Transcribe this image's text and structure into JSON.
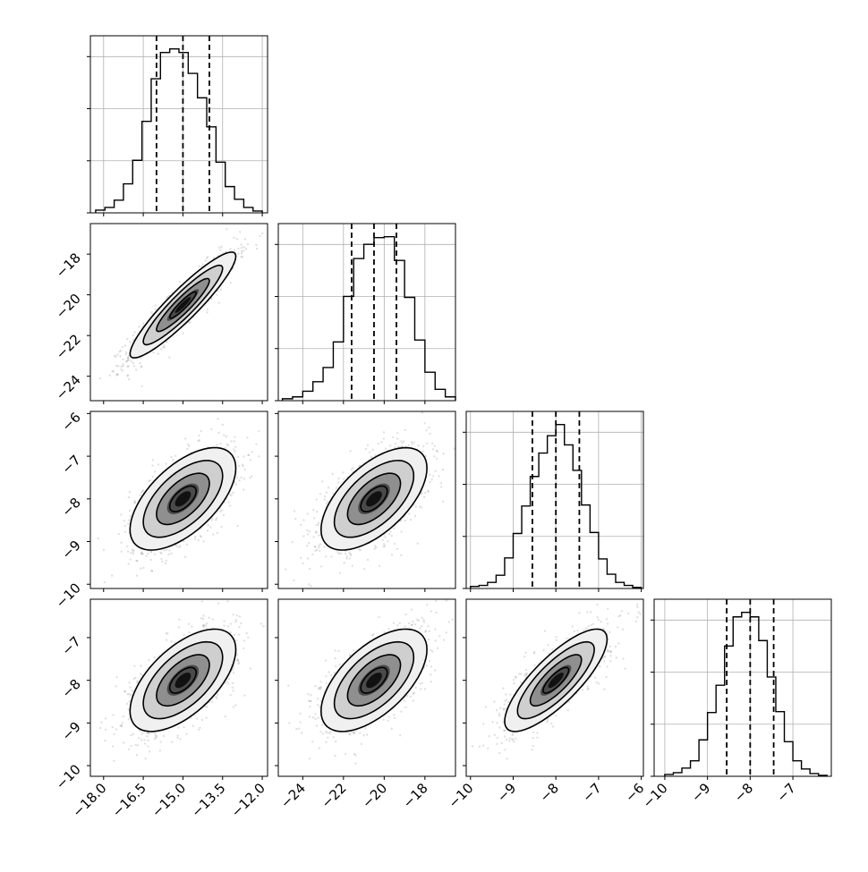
{
  "chart_data": {
    "type": "corner",
    "title": "",
    "parameters": [
      {
        "range": [
          -18.5,
          -11.8
        ],
        "ticks": [
          -18.0,
          -16.5,
          -15.0,
          -13.5,
          -12.0
        ],
        "tick_labels": [
          "−18.0",
          "−16.5",
          "−15.0",
          "−13.5",
          "−12.0"
        ],
        "quantiles": [
          -16.0,
          -15.0,
          -14.0
        ]
      },
      {
        "range": [
          -25.2,
          -16.5
        ],
        "ticks": [
          -24,
          -22,
          -20,
          -18
        ],
        "tick_labels": [
          "−24",
          "−22",
          "−20",
          "−18"
        ],
        "quantiles": [
          -21.6,
          -20.5,
          -19.4
        ]
      },
      {
        "range": [
          -10.1,
          -5.95
        ],
        "ticks": [
          -10,
          -9,
          -8,
          -7,
          -6
        ],
        "tick_labels": [
          "−10",
          "−9",
          "−8",
          "−7",
          "−6"
        ],
        "quantiles": [
          -8.55,
          -8.0,
          -7.45
        ]
      },
      {
        "range": [
          -10.25,
          -6.1
        ],
        "ticks": [
          -10,
          -9,
          -8,
          -7
        ],
        "tick_labels": [
          "−10",
          "−9",
          "−8",
          "−7"
        ],
        "quantiles": [
          -8.55,
          -8.0,
          -7.45
        ]
      }
    ],
    "histograms": [
      {
        "bins": [
          -18.3,
          -17.95,
          -17.6,
          -17.25,
          -16.9,
          -16.55,
          -16.2,
          -15.85,
          -15.5,
          -15.15,
          -14.8,
          -14.45,
          -14.1,
          -13.75,
          -13.4,
          -13.05,
          -12.7,
          -12.35,
          -12.0
        ],
        "counts": [
          3,
          6,
          14,
          32,
          58,
          101,
          148,
          177,
          181,
          177,
          154,
          127,
          95,
          56,
          29,
          15,
          6,
          2
        ]
      },
      {
        "bins": [
          -25.0,
          -24.5,
          -24.0,
          -23.5,
          -23.0,
          -22.5,
          -22.0,
          -21.5,
          -21.0,
          -20.5,
          -20.0,
          -19.5,
          -19.0,
          -18.5,
          -18.0,
          -17.5,
          -17.0,
          -16.5
        ],
        "counts": [
          2,
          4,
          10,
          20,
          35,
          62,
          110,
          150,
          165,
          172,
          173,
          148,
          109,
          64,
          30,
          12,
          4
        ]
      },
      {
        "bins": [
          -10.0,
          -9.8,
          -9.6,
          -9.4,
          -9.2,
          -9.0,
          -8.8,
          -8.6,
          -8.4,
          -8.2,
          -8.0,
          -7.8,
          -7.6,
          -7.4,
          -7.2,
          -7.0,
          -6.8,
          -6.6,
          -6.4,
          -6.2,
          -6.0
        ],
        "counts": [
          2,
          3,
          6,
          13,
          30,
          54,
          81,
          110,
          133,
          150,
          161,
          141,
          116,
          82,
          55,
          29,
          14,
          6,
          3,
          1
        ]
      },
      {
        "bins": [
          -10.0,
          -9.8,
          -9.6,
          -9.4,
          -9.2,
          -9.0,
          -8.8,
          -8.6,
          -8.4,
          -8.2,
          -8.0,
          -7.8,
          -7.6,
          -7.4,
          -7.2,
          -7.0,
          -6.8,
          -6.6,
          -6.4,
          -6.2
        ],
        "counts": [
          2,
          4,
          9,
          17,
          40,
          70,
          100,
          143,
          175,
          180,
          175,
          149,
          109,
          71,
          38,
          17,
          8,
          3,
          1
        ]
      }
    ],
    "pairs": [
      {
        "x": 0,
        "y": 1,
        "mean": [
          -15.0,
          -20.5
        ],
        "sd": [
          1.0,
          1.3
        ],
        "rho": 0.92
      },
      {
        "x": 0,
        "y": 2,
        "mean": [
          -15.0,
          -8.0
        ],
        "sd": [
          1.0,
          0.6
        ],
        "rho": 0.6
      },
      {
        "x": 1,
        "y": 2,
        "mean": [
          -20.5,
          -8.0
        ],
        "sd": [
          1.3,
          0.6
        ],
        "rho": 0.6
      },
      {
        "x": 0,
        "y": 3,
        "mean": [
          -15.0,
          -8.0
        ],
        "sd": [
          1.0,
          0.6
        ],
        "rho": 0.6
      },
      {
        "x": 1,
        "y": 3,
        "mean": [
          -20.5,
          -8.0
        ],
        "sd": [
          1.3,
          0.6
        ],
        "rho": 0.6
      },
      {
        "x": 2,
        "y": 3,
        "mean": [
          -8.0,
          -8.0
        ],
        "sd": [
          0.6,
          0.6
        ],
        "rho": 0.8
      }
    ],
    "contour_levels_sigma": [
      0.5,
      1.0,
      1.5,
      2.0
    ],
    "scatter_points_per_panel": 1200,
    "grid": true,
    "colors": {
      "line": "#000000",
      "grid": "#b0b0b0",
      "scatter": "#000000",
      "frame": "#000000"
    }
  }
}
